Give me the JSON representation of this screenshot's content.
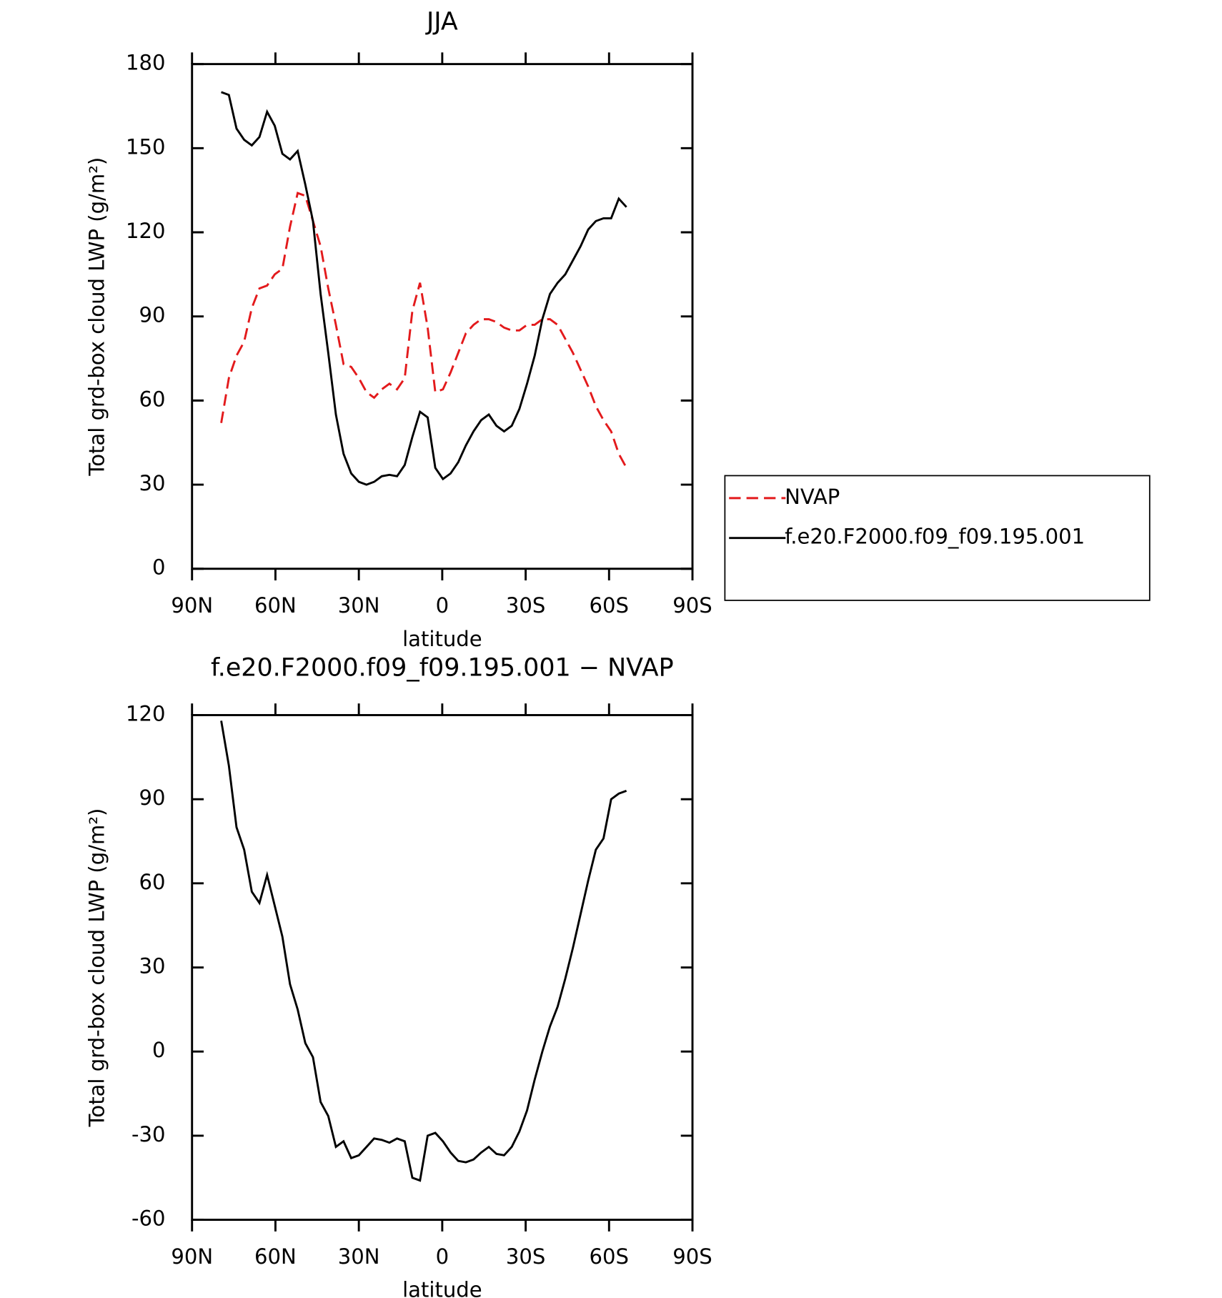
{
  "chart_data": [
    {
      "type": "line",
      "title": "JJA",
      "xlabel": "latitude",
      "ylabel": "Total grd-box cloud LWP (g/m²)",
      "x": [
        79.5,
        76.75,
        74,
        71.25,
        68.5,
        65.75,
        63,
        60.25,
        57.5,
        54.75,
        52,
        49.25,
        46.5,
        43.75,
        41,
        38.25,
        35.5,
        32.75,
        30,
        27.25,
        24.5,
        21.75,
        19,
        16.25,
        13.5,
        10.75,
        8,
        5.25,
        2.5,
        -0.25,
        -3,
        -5.75,
        -8.5,
        -11.25,
        -14,
        -16.75,
        -19.5,
        -22.25,
        -25,
        -27.75,
        -30.5,
        -33.25,
        -36,
        -38.75,
        -41.5,
        -44.25,
        -47,
        -49.75,
        -52.5,
        -55.25,
        -58,
        -60.75,
        -63.5,
        -66.25
      ],
      "series": [
        {
          "name": "NVAP",
          "color": "#e31a1c",
          "linestyle": "dashed",
          "values": [
            52,
            68,
            76,
            81,
            93,
            100,
            101,
            105,
            107,
            122,
            134,
            133,
            124,
            115,
            100,
            87,
            73,
            72,
            68,
            63,
            61,
            64,
            66,
            64,
            68,
            92,
            102,
            86,
            63,
            64,
            70,
            77,
            84,
            87,
            89,
            89,
            88,
            86,
            85,
            85,
            87,
            87,
            89,
            89,
            87,
            82,
            77,
            71,
            65,
            58,
            53,
            49,
            41,
            36
          ]
        },
        {
          "name": "f.e20.F2000.f09_f09.195.001",
          "color": "#000000",
          "linestyle": "solid",
          "values": [
            170,
            169,
            157,
            153,
            151,
            154,
            163,
            158,
            148,
            146,
            149,
            137,
            124,
            98,
            77,
            55,
            41,
            34,
            31,
            30,
            31,
            33,
            33.5,
            33,
            37,
            47,
            56,
            54,
            36,
            32,
            34,
            38,
            44,
            49,
            53,
            55,
            51,
            49,
            51,
            57,
            66,
            76,
            89,
            98,
            102,
            105,
            110,
            115,
            121,
            124,
            125,
            125,
            132,
            129
          ]
        }
      ],
      "xlim": [
        90,
        -90
      ],
      "xticks": [
        {
          "value": 90,
          "label": "90N"
        },
        {
          "value": 60,
          "label": "60N"
        },
        {
          "value": 30,
          "label": "30N"
        },
        0,
        {
          "value": -30,
          "label": "30S"
        },
        {
          "value": -60,
          "label": "60S"
        },
        {
          "value": -90,
          "label": "90S"
        }
      ],
      "ylim": [
        0,
        180
      ],
      "yticks": [
        0,
        30,
        60,
        90,
        120,
        150,
        180
      ],
      "legend": "right"
    },
    {
      "type": "line",
      "title": "f.e20.F2000.f09_f09.195.001 − NVAP",
      "xlabel": "latitude",
      "ylabel": "Total grd-box cloud LWP (g/m²)",
      "x": [
        79.5,
        76.75,
        74,
        71.25,
        68.5,
        65.75,
        63,
        60.25,
        57.5,
        54.75,
        52,
        49.25,
        46.5,
        43.75,
        41,
        38.25,
        35.5,
        32.75,
        30,
        27.25,
        24.5,
        21.75,
        19,
        16.25,
        13.5,
        10.75,
        8,
        5.25,
        2.5,
        -0.25,
        -3,
        -5.75,
        -8.5,
        -11.25,
        -14,
        -16.75,
        -19.5,
        -22.25,
        -25,
        -27.75,
        -30.5,
        -33.25,
        -36,
        -38.75,
        -41.5,
        -44.25,
        -47,
        -49.75,
        -52.5,
        -55.25,
        -58,
        -60.75,
        -63.5,
        -66.25
      ],
      "color": "#000000",
      "values": [
        118,
        102,
        80,
        72,
        57,
        53,
        63,
        52,
        41,
        24,
        15,
        3,
        -2,
        -18,
        -23,
        -34,
        -32,
        -38,
        -37,
        -34,
        -31,
        -31.5,
        -32.5,
        -31,
        -32,
        -45,
        -46,
        -30,
        -29,
        -32,
        -36,
        -39,
        -39.5,
        -38.5,
        -36,
        -34,
        -36.5,
        -37,
        -34,
        -28.5,
        -21,
        -10,
        0,
        9,
        16,
        26,
        37,
        49,
        61,
        72,
        76,
        90,
        92,
        93
      ],
      "xlim": [
        90,
        -90
      ],
      "xticks": [
        {
          "value": 90,
          "label": "90N"
        },
        {
          "value": 60,
          "label": "60N"
        },
        {
          "value": 30,
          "label": "30N"
        },
        0,
        {
          "value": -30,
          "label": "30S"
        },
        {
          "value": -60,
          "label": "60S"
        },
        {
          "value": -90,
          "label": "90S"
        }
      ],
      "ylim": [
        -60,
        120
      ],
      "yticks": [
        -60,
        -30,
        0,
        30,
        60,
        90,
        120
      ]
    }
  ]
}
